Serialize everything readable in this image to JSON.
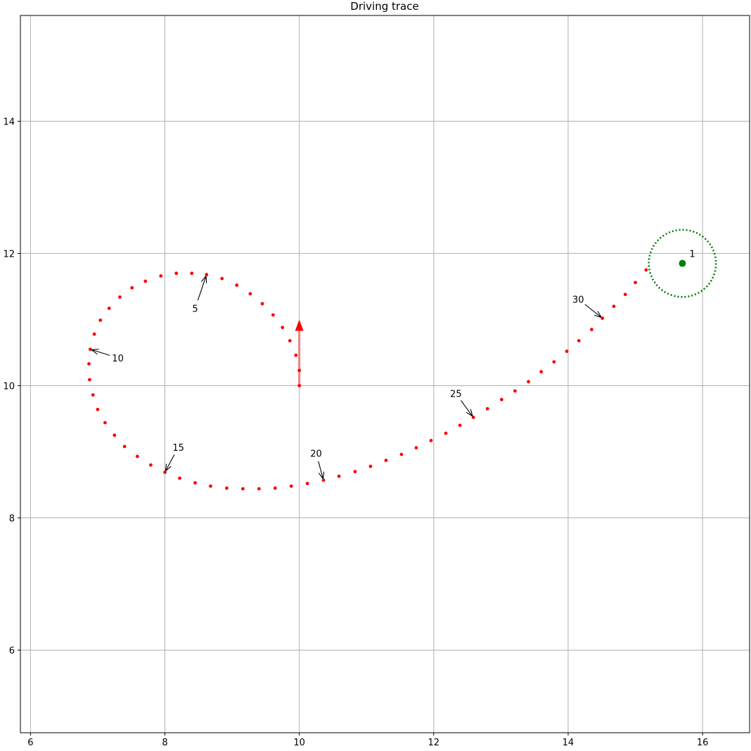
{
  "chart_data": {
    "type": "scatter",
    "title": "Driving trace",
    "xlabel": "",
    "ylabel": "",
    "xlim": [
      5.85,
      16.7
    ],
    "ylim": [
      4.75,
      15.6
    ],
    "grid": true,
    "xticks": [
      {
        "value": 6,
        "label": "6"
      },
      {
        "value": 8,
        "label": "8"
      },
      {
        "value": 10,
        "label": "10"
      },
      {
        "value": 12,
        "label": "12"
      },
      {
        "value": 14,
        "label": "14"
      },
      {
        "value": 16,
        "label": "16"
      }
    ],
    "yticks": [
      {
        "value": 6,
        "label": "6"
      },
      {
        "value": 8,
        "label": "8"
      },
      {
        "value": 10,
        "label": "10"
      },
      {
        "value": 12,
        "label": "12"
      },
      {
        "value": 14,
        "label": "14"
      }
    ],
    "trace": {
      "color": "#ff0000",
      "points": [
        [
          10.0,
          10.0
        ],
        [
          10.0,
          10.23
        ],
        [
          9.95,
          10.46
        ],
        [
          9.86,
          10.68
        ],
        [
          9.75,
          10.88
        ],
        [
          9.61,
          11.07
        ],
        [
          9.45,
          11.24
        ],
        [
          9.27,
          11.39
        ],
        [
          9.07,
          11.52
        ],
        [
          8.85,
          11.62
        ],
        [
          8.62,
          11.68
        ],
        [
          8.4,
          11.7
        ],
        [
          8.17,
          11.7
        ],
        [
          7.94,
          11.66
        ],
        [
          7.71,
          11.58
        ],
        [
          7.51,
          11.48
        ],
        [
          7.33,
          11.34
        ],
        [
          7.17,
          11.17
        ],
        [
          7.04,
          10.99
        ],
        [
          6.95,
          10.78
        ],
        [
          6.89,
          10.55
        ],
        [
          6.87,
          10.33
        ],
        [
          6.88,
          10.09
        ],
        [
          6.93,
          9.86
        ],
        [
          7.0,
          9.64
        ],
        [
          7.11,
          9.44
        ],
        [
          7.25,
          9.25
        ],
        [
          7.4,
          9.08
        ],
        [
          7.59,
          8.93
        ],
        [
          7.79,
          8.8
        ],
        [
          8.0,
          8.69
        ],
        [
          8.22,
          8.6
        ],
        [
          8.45,
          8.53
        ],
        [
          8.68,
          8.48
        ],
        [
          8.92,
          8.45
        ],
        [
          9.16,
          8.44
        ],
        [
          9.4,
          8.44
        ],
        [
          9.64,
          8.45
        ],
        [
          9.88,
          8.48
        ],
        [
          10.12,
          8.52
        ],
        [
          10.36,
          8.57
        ],
        [
          10.59,
          8.63
        ],
        [
          10.83,
          8.7
        ],
        [
          11.06,
          8.78
        ],
        [
          11.29,
          8.87
        ],
        [
          11.52,
          8.96
        ],
        [
          11.74,
          9.06
        ],
        [
          11.96,
          9.17
        ],
        [
          12.18,
          9.28
        ],
        [
          12.39,
          9.4
        ],
        [
          12.59,
          9.52
        ],
        [
          12.8,
          9.65
        ],
        [
          13.01,
          9.79
        ],
        [
          13.21,
          9.92
        ],
        [
          13.41,
          10.06
        ],
        [
          13.6,
          10.21
        ],
        [
          13.79,
          10.36
        ],
        [
          13.98,
          10.52
        ],
        [
          14.16,
          10.68
        ],
        [
          14.35,
          10.85
        ],
        [
          14.51,
          11.02
        ],
        [
          14.68,
          11.2
        ],
        [
          14.85,
          11.38
        ],
        [
          15.0,
          11.56
        ],
        [
          15.16,
          11.75
        ]
      ]
    },
    "start_arrow": {
      "color": "#ff0000",
      "from": [
        10.0,
        10.0
      ],
      "to": [
        10.0,
        11.0
      ]
    },
    "target": {
      "x": 15.7,
      "y": 11.85,
      "radius": 0.5,
      "color": "#008000",
      "label": "1"
    },
    "annotations": [
      {
        "text": "5",
        "point_index": 10,
        "text_pos": [
          8.45,
          11.17
        ]
      },
      {
        "text": "10",
        "point_index": 20,
        "text_pos": [
          7.3,
          10.42
        ]
      },
      {
        "text": "15",
        "point_index": 30,
        "text_pos": [
          8.2,
          9.07
        ]
      },
      {
        "text": "20",
        "point_index": 40,
        "text_pos": [
          10.25,
          8.98
        ]
      },
      {
        "text": "25",
        "point_index": 50,
        "text_pos": [
          12.33,
          9.88
        ]
      },
      {
        "text": "30",
        "point_index": 60,
        "text_pos": [
          14.15,
          11.31
        ]
      }
    ]
  }
}
